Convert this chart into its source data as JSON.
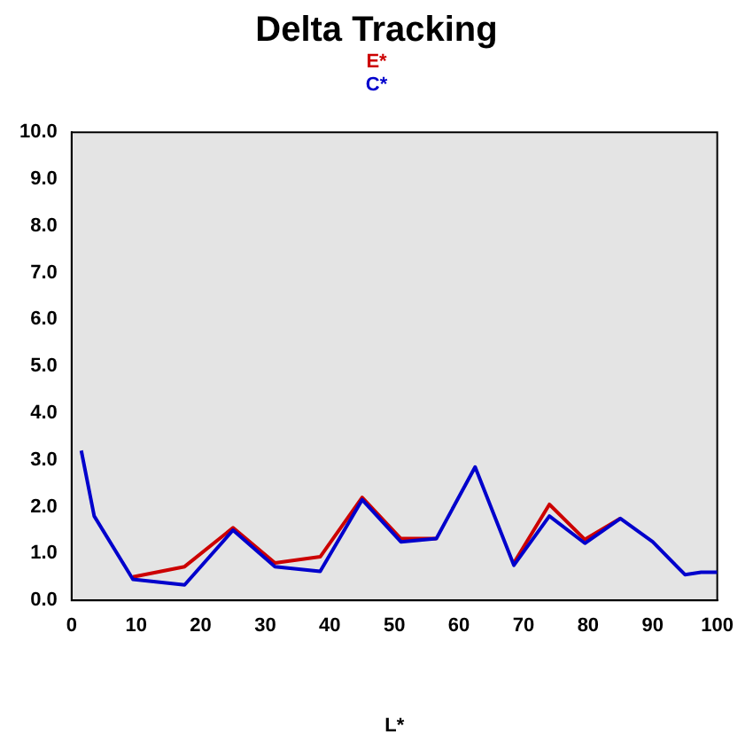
{
  "chart_data": {
    "type": "line",
    "title": "Delta Tracking",
    "xlabel": "L*",
    "x": [
      1.5,
      3.5,
      9.5,
      17.5,
      25,
      31.5,
      38.5,
      45,
      51,
      56.5,
      62.5,
      68.5,
      74,
      79.5,
      85,
      90,
      95,
      97.5,
      100
    ],
    "series": [
      {
        "name": "E*",
        "color": "#cc0000",
        "values": [
          null,
          null,
          0.5,
          0.72,
          1.55,
          0.8,
          0.93,
          2.2,
          1.32,
          1.32,
          null,
          0.8,
          2.05,
          1.3,
          1.75,
          null,
          null,
          null,
          null
        ]
      },
      {
        "name": "C*",
        "color": "#0000cc",
        "values": [
          3.2,
          1.8,
          0.45,
          0.33,
          1.5,
          0.72,
          0.62,
          2.15,
          1.25,
          1.32,
          2.85,
          0.75,
          1.8,
          1.22,
          1.75,
          1.25,
          0.55,
          0.6,
          0.6
        ]
      }
    ],
    "xlim": [
      0,
      100
    ],
    "xticks": [
      0,
      10,
      20,
      30,
      40,
      50,
      60,
      70,
      80,
      90,
      100
    ],
    "ylim": [
      0,
      10
    ],
    "yticks": [
      {
        "value": 0,
        "label": "0.0"
      },
      {
        "value": 1,
        "label": "1.0"
      },
      {
        "value": 2,
        "label": "2.0"
      },
      {
        "value": 3,
        "label": "3.0"
      },
      {
        "value": 4,
        "label": "4.0"
      },
      {
        "value": 5,
        "label": "5.0"
      },
      {
        "value": 6,
        "label": "6.0"
      },
      {
        "value": 7,
        "label": "7.0"
      },
      {
        "value": 8,
        "label": "8.0"
      },
      {
        "value": 9,
        "label": "9.0"
      },
      {
        "value": 10,
        "label": "10.0"
      }
    ],
    "grid": false,
    "legend": "top",
    "marker": "none",
    "line_style": "solid"
  }
}
